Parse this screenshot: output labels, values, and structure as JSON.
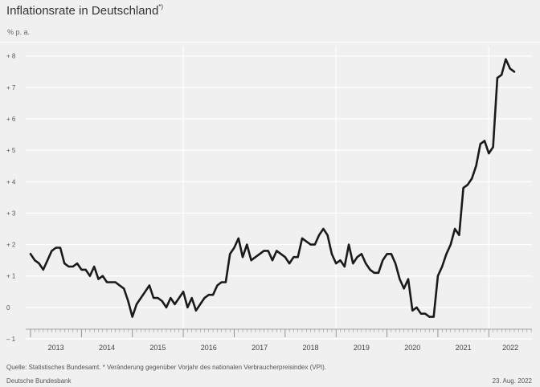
{
  "header": {
    "title": "Inflationsrate in Deutschland",
    "title_marker": "*)",
    "unit": "% p. a."
  },
  "footer": {
    "source": "Quelle: Statistisches Bundesamt. * Veränderung gegenüber Vorjahr des nationalen Verbraucherpreisindex (VPI).",
    "publisher": "Deutsche Bundesbank",
    "date": "23. Aug. 2022"
  },
  "colors": {
    "background": "#f0f0f0",
    "grid": "#ffffff",
    "line": "#1a1a1a",
    "text": "#333333"
  },
  "chart_data": {
    "type": "line",
    "title": "Inflationsrate in Deutschland",
    "ylabel": "% p. a.",
    "xlabel": "",
    "ylim": [
      -1,
      8.3
    ],
    "yticks": [
      -1,
      0,
      1,
      2,
      3,
      4,
      5,
      6,
      7,
      8
    ],
    "ytick_labels": [
      "– 1",
      "0",
      "+ 1",
      "+ 2",
      "+ 3",
      "+ 4",
      "+ 5",
      "+ 6",
      "+ 7",
      "+ 8"
    ],
    "x_range": [
      "2013-01",
      "2022-07"
    ],
    "year_labels": [
      "2013",
      "2014",
      "2015",
      "2016",
      "2017",
      "2018",
      "2019",
      "2020",
      "2021",
      "2022"
    ],
    "vertical_gridlines": [
      "2016-01",
      "2019-01",
      "2022-01"
    ],
    "grid": true,
    "legend": "none",
    "series": [
      {
        "values": [
          1.7,
          1.5,
          1.4,
          1.2,
          1.5,
          1.8,
          1.9,
          1.9,
          1.4,
          1.3,
          1.3,
          1.4,
          1.2,
          1.2,
          1.0,
          1.3,
          0.9,
          1.0,
          0.8,
          0.8,
          0.8,
          0.7,
          0.6,
          0.2,
          -0.3,
          0.1,
          0.3,
          0.5,
          0.7,
          0.3,
          0.3,
          0.2,
          0.0,
          0.3,
          0.1,
          0.3,
          0.5,
          0.0,
          0.3,
          -0.1,
          0.1,
          0.3,
          0.4,
          0.4,
          0.7,
          0.8,
          0.8,
          1.7,
          1.9,
          2.2,
          1.6,
          2.0,
          1.5,
          1.6,
          1.7,
          1.8,
          1.8,
          1.5,
          1.8,
          1.7,
          1.6,
          1.4,
          1.6,
          1.6,
          2.2,
          2.1,
          2.0,
          2.0,
          2.3,
          2.5,
          2.3,
          1.7,
          1.4,
          1.5,
          1.3,
          2.0,
          1.4,
          1.6,
          1.7,
          1.4,
          1.2,
          1.1,
          1.1,
          1.5,
          1.7,
          1.7,
          1.4,
          0.9,
          0.6,
          0.9,
          -0.1,
          0.0,
          -0.2,
          -0.2,
          -0.3,
          -0.3,
          1.0,
          1.3,
          1.7,
          2.0,
          2.5,
          2.3,
          3.8,
          3.9,
          4.1,
          4.5,
          5.2,
          5.3,
          4.9,
          5.1,
          7.3,
          7.4,
          7.9,
          7.6,
          7.5
        ]
      }
    ]
  }
}
